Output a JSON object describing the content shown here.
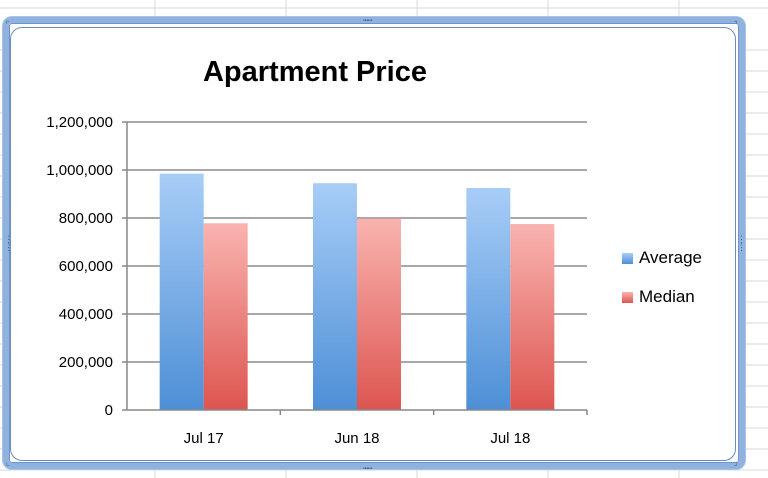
{
  "chart_data": {
    "type": "bar",
    "title": "Apartment Price",
    "categories": [
      "Jul 17",
      "Jun 18",
      "Jul 18"
    ],
    "series": [
      {
        "name": "Average",
        "values": [
          985000,
          945000,
          925000
        ],
        "color": "#5b9bd5"
      },
      {
        "name": "Median",
        "values": [
          778000,
          798000,
          775000
        ],
        "color": "#e06666"
      }
    ],
    "y_ticks": [
      "0",
      "200,000",
      "400,000",
      "600,000",
      "800,000",
      "1,000,000",
      "1,200,000"
    ],
    "ylim": [
      0,
      1200000
    ],
    "grid": true,
    "legend_position": "right"
  },
  "colors": {
    "frame": "#8fb2de",
    "average_light": "#a8cdf7",
    "average_dark": "#4d8fd6",
    "median_light": "#f9b4b0",
    "median_dark": "#dd5550",
    "gridline": "#8c8c8c"
  },
  "handles": {
    "corner": "⠏",
    "edge": "⠿⠿"
  }
}
